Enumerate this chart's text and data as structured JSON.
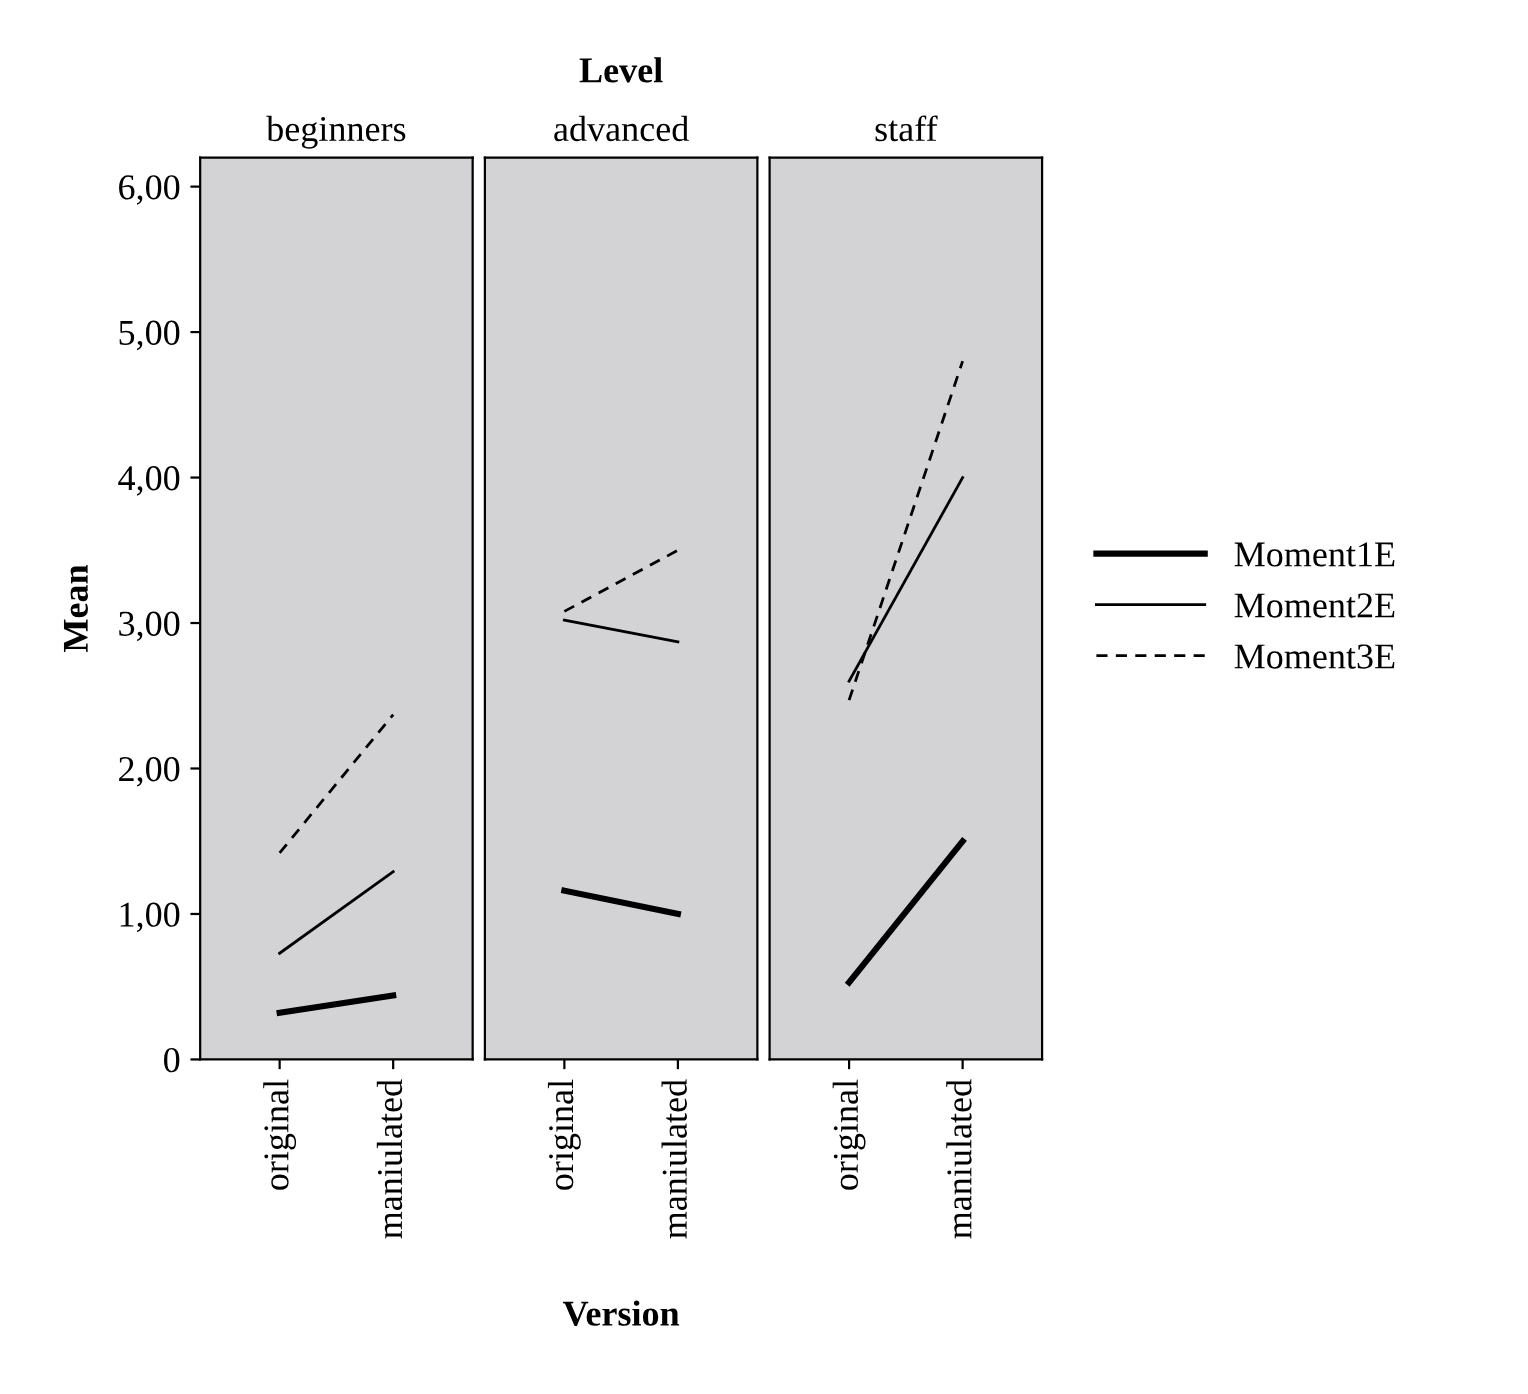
{
  "chart_data": [
    {
      "type": "line",
      "subtitle": "beginners",
      "ylabel": "Mean",
      "categories": [
        "original",
        "maniulated"
      ],
      "series": [
        {
          "color": "#000000",
          "line_style": "solid",
          "values": [
            0.32,
            0.44
          ]
        },
        {
          "color": "#000000",
          "line_style": "solid",
          "values": [
            0.73,
            1.29
          ]
        },
        {
          "color": "#000000",
          "line_style": "dashed",
          "values": [
            1.42,
            2.37
          ]
        }
      ],
      "ylim": [
        0,
        6.2
      ],
      "yticks": [
        0,
        {
          "value": 1,
          "label": "1,00"
        },
        {
          "value": 2,
          "label": "2,00"
        },
        {
          "value": 3,
          "label": "3,00"
        },
        {
          "value": 4,
          "label": "4,00"
        },
        {
          "value": 5,
          "label": "5,00"
        },
        {
          "value": 6,
          "label": "6,00"
        }
      ],
      "grid": false
    },
    {
      "type": "line",
      "title": "Level",
      "subtitle": "advanced",
      "xlabel": "Version",
      "categories": [
        "original",
        "maniulated"
      ],
      "series": [
        {
          "color": "#000000",
          "line_style": "solid",
          "values": [
            1.16,
            1.0
          ]
        },
        {
          "color": "#000000",
          "line_style": "solid",
          "values": [
            3.02,
            2.87
          ]
        },
        {
          "color": "#000000",
          "line_style": "dashed",
          "values": [
            3.08,
            3.5
          ]
        }
      ],
      "ylim": [
        0,
        6.2
      ],
      "tick_labels": "x",
      "grid": false
    },
    {
      "type": "line",
      "subtitle": "staff",
      "categories": [
        "original",
        "maniulated"
      ],
      "series": [
        {
          "name": "Moment1E",
          "color": "#000000",
          "line_style": "solid",
          "values": [
            0.53,
            1.5
          ]
        },
        {
          "name": "Moment2E",
          "color": "#000000",
          "line_style": "solid",
          "values": [
            2.6,
            4.0
          ]
        },
        {
          "name": "Moment3E",
          "color": "#000000",
          "line_style": "dashed",
          "values": [
            2.47,
            4.8
          ]
        }
      ],
      "ylim": [
        0,
        6.2
      ],
      "tick_labels": "x",
      "grid": false,
      "legend": "right"
    }
  ]
}
